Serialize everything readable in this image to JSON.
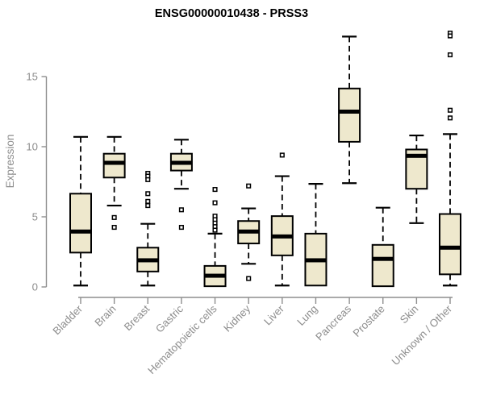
{
  "colors": {
    "box_fill": "#EEE8CD",
    "box_stroke": "#000000",
    "median": "#000000",
    "whisker": "#000000",
    "outlier_fill": "#ffffff",
    "axis": "#8e8e8e",
    "tick_text": "#8e8e8e",
    "title_text": "#000000",
    "background": "#ffffff"
  },
  "chart_data": {
    "type": "boxplot",
    "title": "ENSG00000010438 - PRSS3",
    "xlabel": "",
    "ylabel": "Expression",
    "yticks": [
      0,
      5,
      10,
      15
    ],
    "ylim": [
      0,
      18.3
    ],
    "grid": false,
    "legend": false,
    "categories": [
      "Bladder",
      "Brain",
      "Breast",
      "Gastric",
      "Hematopoietic cells",
      "Kidney",
      "Liver",
      "Lung",
      "Pancreas",
      "Prostate",
      "Skin",
      "Unknown / Other"
    ],
    "series": [
      {
        "name": "Bladder",
        "low": 0.1,
        "q1": 2.45,
        "median": 3.95,
        "q3": 6.65,
        "high": 10.7,
        "outliers": []
      },
      {
        "name": "Brain",
        "low": 5.8,
        "q1": 7.8,
        "median": 8.85,
        "q3": 9.5,
        "high": 10.7,
        "outliers": [
          4.95,
          4.25
        ]
      },
      {
        "name": "Breast",
        "low": 0.1,
        "q1": 1.1,
        "median": 1.9,
        "q3": 2.8,
        "high": 4.5,
        "outliers": [
          8.1,
          7.9,
          7.65,
          6.65,
          6.1,
          5.8
        ]
      },
      {
        "name": "Gastric",
        "low": 7.0,
        "q1": 8.3,
        "median": 8.85,
        "q3": 9.5,
        "high": 10.5,
        "outliers": [
          5.5,
          4.25
        ]
      },
      {
        "name": "Hematopoietic cells",
        "low": 0.05,
        "q1": 0.05,
        "median": 0.8,
        "q3": 1.5,
        "high": 3.8,
        "outliers": [
          6.95,
          6.0,
          5.05,
          4.8,
          4.55,
          4.3,
          4.05
        ]
      },
      {
        "name": "Kidney",
        "low": 1.65,
        "q1": 3.1,
        "median": 3.95,
        "q3": 4.7,
        "high": 5.6,
        "outliers": [
          7.2,
          0.6
        ]
      },
      {
        "name": "Liver",
        "low": 0.1,
        "q1": 2.25,
        "median": 3.6,
        "q3": 5.05,
        "high": 7.9,
        "outliers": [
          9.4
        ]
      },
      {
        "name": "Lung",
        "low": 0.1,
        "q1": 0.1,
        "median": 1.9,
        "q3": 3.8,
        "high": 7.35,
        "outliers": []
      },
      {
        "name": "Pancreas",
        "low": 7.4,
        "q1": 10.35,
        "median": 12.5,
        "q3": 14.15,
        "high": 17.85,
        "outliers": []
      },
      {
        "name": "Prostate",
        "low": 0.05,
        "q1": 0.05,
        "median": 2.0,
        "q3": 3.0,
        "high": 5.65,
        "outliers": []
      },
      {
        "name": "Skin",
        "low": 4.55,
        "q1": 7.0,
        "median": 9.35,
        "q3": 9.8,
        "high": 10.8,
        "outliers": []
      },
      {
        "name": "Unknown / Other",
        "low": 0.1,
        "q1": 0.9,
        "median": 2.8,
        "q3": 5.2,
        "high": 10.9,
        "outliers": [
          18.1,
          17.9,
          16.55,
          12.6,
          12.05
        ]
      }
    ]
  }
}
